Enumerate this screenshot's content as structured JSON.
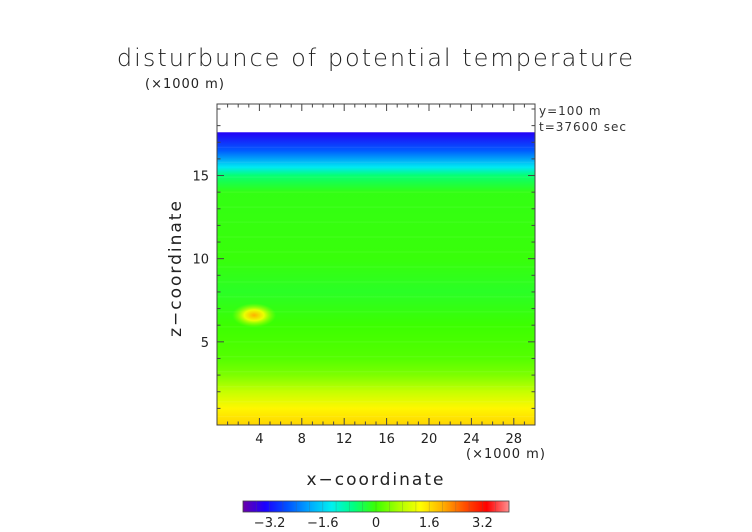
{
  "chart_data": {
    "type": "heatmap",
    "title": "disturbunce of potential temperature",
    "xlabel": "x−coordinate",
    "ylabel": "z−coordinate",
    "x_unit": "(×1000 m)",
    "y_unit": "(×1000 m)",
    "annotations": [
      "y=100 m",
      "t=37600 sec"
    ],
    "xlim": [
      0,
      30
    ],
    "ylim": [
      0,
      19.3
    ],
    "x_ticks": [
      4,
      8,
      12,
      16,
      20,
      24,
      28
    ],
    "y_ticks": [
      5,
      10,
      15
    ],
    "colorbar": {
      "range": [
        -4,
        4
      ],
      "tick_values": [
        -3.2,
        -1.6,
        0,
        1.6,
        3.2
      ],
      "tick_labels": [
        "−3.2",
        "−1.6",
        "0",
        "1.6",
        "3.2"
      ],
      "colors": [
        "#6a00a8",
        "#1b00ff",
        "#0052ff",
        "#00a8ff",
        "#00f0f0",
        "#00ff80",
        "#3cff00",
        "#a8ff00",
        "#ffff00",
        "#ffb000",
        "#ff5000",
        "#ff0000",
        "#ff9090"
      ]
    },
    "data_top": 17.6,
    "vertical_profile": [
      {
        "z": 0.0,
        "value": 1.7
      },
      {
        "z": 1.0,
        "value": 1.4
      },
      {
        "z": 2.0,
        "value": 0.9
      },
      {
        "z": 3.0,
        "value": 0.4
      },
      {
        "z": 4.0,
        "value": 0.15
      },
      {
        "z": 6.0,
        "value": 0.0
      },
      {
        "z": 8.0,
        "value": -0.2
      },
      {
        "z": 10.0,
        "value": -0.05
      },
      {
        "z": 14.0,
        "value": -0.1
      },
      {
        "z": 15.0,
        "value": -0.6
      },
      {
        "z": 15.5,
        "value": -1.4
      },
      {
        "z": 16.5,
        "value": -2.6
      },
      {
        "z": 17.6,
        "value": -3.4
      }
    ],
    "features": [
      {
        "label": "warm anomaly",
        "x": 3.5,
        "z": 6.6,
        "value": 1.6
      }
    ]
  }
}
